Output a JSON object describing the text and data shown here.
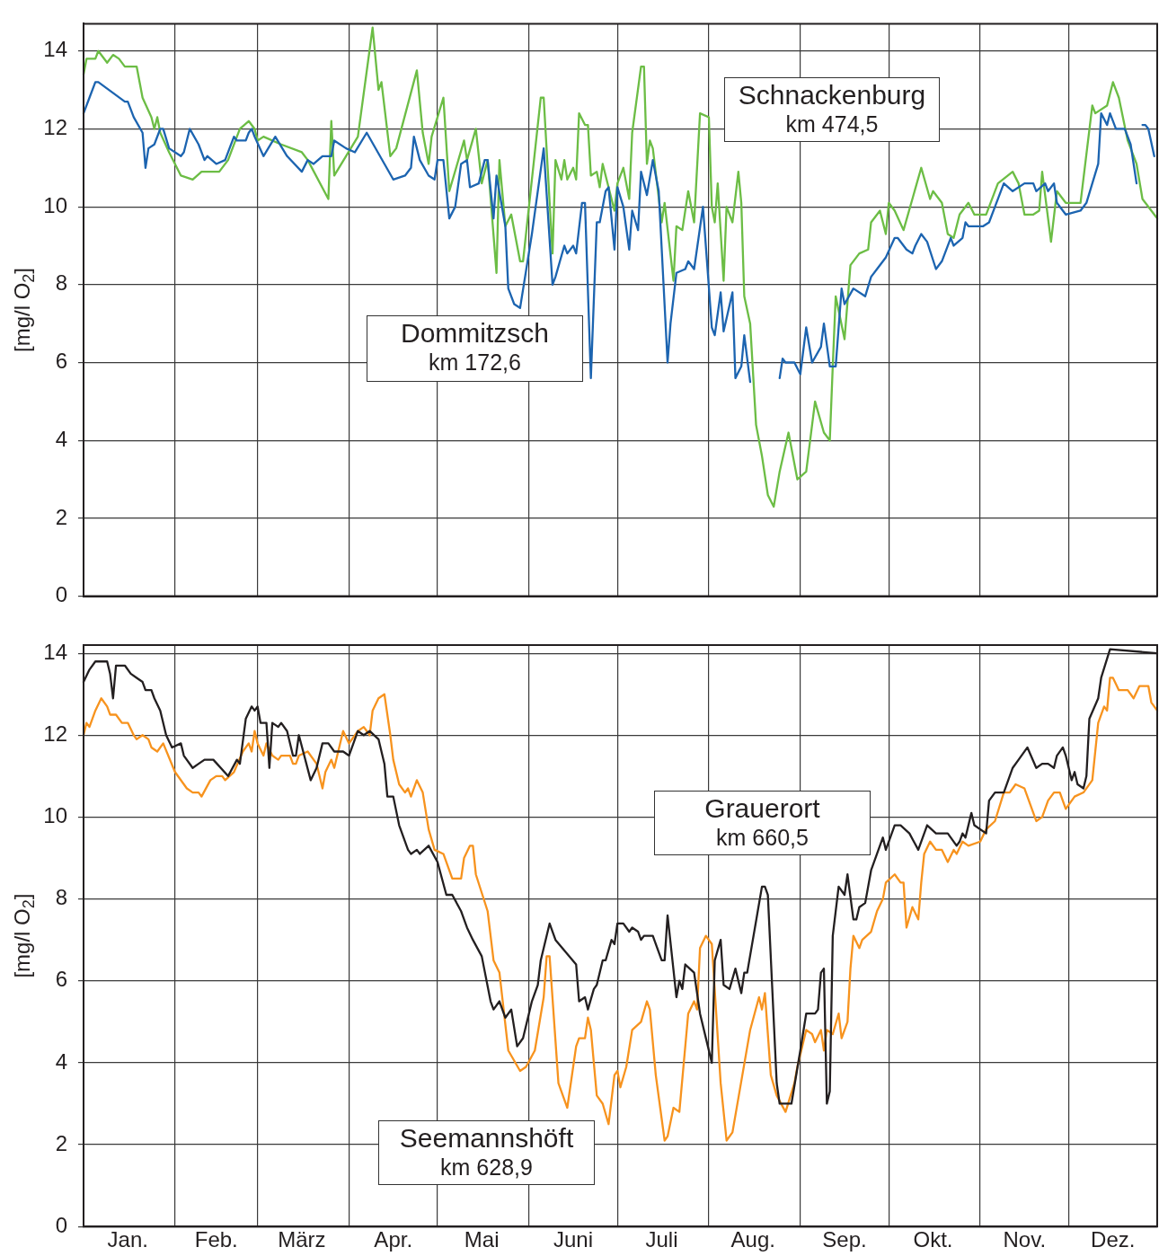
{
  "chart_data": [
    {
      "type": "line",
      "ylabel": "[mg/l O$_{2}$]",
      "xlim": [
        "--01-01",
        "--12-31"
      ],
      "ylim": [
        0,
        14.7
      ],
      "yticks": [
        0,
        2,
        4,
        6,
        8,
        10,
        12,
        14
      ],
      "xticks": [
        {
          "value": "--01-01",
          "label": null
        },
        {
          "value": "--02-01",
          "label": null
        },
        {
          "value": "--03-01",
          "label": null
        },
        {
          "value": "--04-01",
          "label": null
        },
        {
          "value": "--05-01",
          "label": null
        },
        {
          "value": "--06-01",
          "label": null
        },
        {
          "value": "--07-01",
          "label": null
        },
        {
          "value": "--08-01",
          "label": null
        },
        {
          "value": "--09-01",
          "label": null
        },
        {
          "value": "--10-01",
          "label": null
        },
        {
          "value": "--11-01",
          "label": null
        },
        {
          "value": "--12-01",
          "label": null
        },
        {
          "value": "--12-31",
          "label": null
        }
      ],
      "tick_labels": "y",
      "grid": true,
      "legend": false,
      "annotations": [
        "km 172,6",
        "km 474,5"
      ],
      "series": [
        {
          "name": "Dommitzsch",
          "color": "#1c64b0",
          "x": [
            "--01-01",
            "--01-03",
            "--01-05",
            "--01-06",
            "--01-15",
            "--01-16",
            "--01-18",
            "--01-21",
            "--01-22",
            "--01-23",
            "--01-25",
            "--01-27",
            "--01-28",
            "--01-30",
            "--02-03",
            "--02-04",
            "--02-06",
            "--02-09",
            "--02-11",
            "--02-12",
            "--02-15",
            "--02-18",
            "--02-21",
            "--02-22",
            "--02-25",
            "--02-26",
            "--02-27",
            "--02-28",
            "--03-03",
            "--03-07",
            "--03-11",
            "--03-16",
            "--03-18",
            "--03-20",
            "--03-23",
            "--03-26",
            "--03-27",
            "--03-31",
            "--04-03",
            "--04-07",
            "--04-16",
            "--04-20",
            "--04-22",
            "--04-23",
            "--04-25",
            "--04-28",
            "--04-30",
            "--05-01",
            "--05-03",
            "--05-05",
            "--05-07",
            "--05-09",
            "--05-11",
            "--05-12",
            "--05-15",
            "--05-17",
            "--05-18",
            "--05-20",
            "--05-21",
            "--05-24",
            "--05-25",
            "--05-27",
            "--05-29",
            "--06-02",
            "--06-06",
            "--06-09",
            "--06-10",
            "--06-13",
            "--06-14",
            "--06-16",
            "--06-17",
            "--06-19",
            "--06-20",
            "--06-22",
            "--06-24",
            "--06-25",
            "--06-27",
            "--06-28",
            "--06-30",
            "--07-01",
            "--07-03",
            "--07-05",
            "--07-06",
            "--07-08",
            "--07-09",
            "--07-11",
            "--07-13",
            "--07-15",
            "--07-18",
            "--07-19",
            "--07-21",
            "--07-24",
            "--07-25",
            "--07-27",
            "--07-30",
            "--08-02",
            "--08-03",
            "--08-05",
            "--08-06",
            "--08-09",
            "--08-10",
            "--08-12",
            "--08-13",
            "--08-15",
            "--08-20",
            "--08-25",
            "--08-26",
            "--08-27",
            "--08-30",
            "--09-01",
            "--09-03",
            "--09-05",
            "--09-08",
            "--09-09",
            "--09-11",
            "--09-13",
            "--09-15",
            "--09-16",
            "--09-19",
            "--09-23",
            "--09-25",
            "--09-27",
            "--09-30",
            "--10-03",
            "--10-04",
            "--10-07",
            "--10-09",
            "--10-10",
            "--10-12",
            "--10-14",
            "--10-17",
            "--10-19",
            "--10-22",
            "--10-23",
            "--10-26",
            "--10-27",
            "--10-28",
            "--11-02",
            "--11-04",
            "--11-06",
            "--11-09",
            "--11-12",
            "--11-16",
            "--11-19",
            "--11-20",
            "--11-23",
            "--11-24",
            "--11-26",
            "--11-27",
            "--11-30",
            "--12-05",
            "--12-07",
            "--12-11",
            "--12-12",
            "--12-14",
            "--12-15",
            "--12-17",
            "--12-20",
            "--12-22",
            "--12-24",
            "--12-25",
            "--12-26",
            "--12-27",
            "--12-28",
            "--12-30"
          ],
          "values": [
            12.4,
            12.8,
            13.2,
            13.2,
            12.7,
            12.7,
            12.3,
            11.9,
            11.0,
            11.5,
            11.6,
            12.0,
            12.0,
            11.5,
            11.3,
            11.4,
            12.0,
            11.6,
            11.2,
            11.3,
            11.1,
            11.2,
            11.8,
            11.7,
            11.7,
            11.9,
            12.0,
            11.8,
            11.3,
            11.8,
            11.3,
            10.9,
            11.2,
            11.1,
            11.3,
            11.3,
            11.7,
            11.5,
            11.4,
            11.9,
            10.7,
            10.8,
            11.0,
            11.8,
            11.2,
            10.8,
            10.7,
            11.2,
            11.2,
            9.7,
            10.0,
            11.1,
            11.2,
            10.5,
            10.6,
            11.2,
            11.2,
            9.7,
            10.8,
            9.5,
            7.9,
            7.5,
            7.4,
            9.3,
            11.5,
            8.0,
            8.2,
            9.0,
            8.8,
            9.0,
            8.8,
            10.1,
            10.1,
            5.6,
            9.6,
            9.6,
            10.4,
            10.5,
            8.9,
            10.5,
            10.0,
            8.9,
            9.9,
            9.4,
            10.9,
            10.3,
            11.2,
            10.4,
            6.0,
            7.0,
            8.3,
            8.4,
            8.6,
            8.4,
            10.0,
            6.9,
            6.7,
            7.8,
            6.8,
            7.8,
            5.6,
            5.9,
            6.7,
            5.5,
            null,
            5.6,
            6.1,
            6.0,
            6.0,
            5.7,
            6.9,
            6.0,
            6.4,
            7.0,
            5.9,
            5.9,
            7.9,
            7.5,
            7.9,
            7.7,
            8.2,
            8.4,
            8.7,
            9.2,
            9.2,
            8.9,
            8.8,
            9.0,
            9.3,
            9.1,
            8.4,
            8.6,
            9.2,
            9.0,
            9.2,
            9.6,
            9.5,
            9.5,
            9.6,
            10.0,
            10.6,
            10.4,
            10.6,
            10.6,
            10.4,
            10.6,
            10.4,
            10.6,
            10.1,
            9.8,
            9.9,
            10.1,
            11.1,
            12.4,
            12.1,
            12.4,
            12.0,
            12.0,
            11.6,
            10.6,
            null,
            12.1,
            12.1,
            12.0,
            11.3
          ]
        },
        {
          "name": "Schnackenburg",
          "color": "#6cbd45",
          "x": [
            "--01-01",
            "--01-02",
            "--01-05",
            "--01-06",
            "--01-09",
            "--01-11",
            "--01-13",
            "--01-15",
            "--01-19",
            "--01-21",
            "--01-24",
            "--01-25",
            "--01-26",
            "--01-27",
            "--01-30",
            "--02-03",
            "--02-07",
            "--02-10",
            "--02-16",
            "--02-19",
            "--02-23",
            "--02-26",
            "--02-28",
            "--03-01",
            "--03-03",
            "--03-09",
            "--03-16",
            "--03-18",
            "--03-25",
            "--03-26",
            "--03-27",
            "--04-04",
            "--04-09",
            "--04-11",
            "--04-12",
            "--04-15",
            "--04-17",
            "--04-24",
            "--04-26",
            "--04-28",
            "--04-29",
            "--05-03",
            "--05-05",
            "--05-10",
            "--05-11",
            "--05-14",
            "--05-16",
            "--05-18",
            "--05-21",
            "--05-22",
            "--05-24",
            "--05-26",
            "--05-29",
            "--05-30",
            "--06-05",
            "--06-06",
            "--06-09",
            "--06-10",
            "--06-12",
            "--06-13",
            "--06-14",
            "--06-16",
            "--06-17",
            "--06-18",
            "--06-20",
            "--06-21",
            "--06-22",
            "--06-24",
            "--06-25",
            "--06-26",
            "--06-30",
            "--07-01",
            "--07-03",
            "--07-05",
            "--07-06",
            "--07-09",
            "--07-10",
            "--07-11",
            "--07-12",
            "--07-13",
            "--07-16",
            "--07-17",
            "--07-20",
            "--07-21",
            "--07-23",
            "--07-25",
            "--07-27",
            "--07-29",
            "--08-01",
            "--08-02",
            "--08-03",
            "--08-04",
            "--08-06",
            "--08-07",
            "--08-09",
            "--08-11",
            "--08-12",
            "--08-13",
            "--08-15",
            "--08-17",
            "--08-19",
            "--08-21",
            "--08-23",
            "--08-25",
            "--08-28",
            "--08-31",
            "--09-03",
            "--09-06",
            "--09-09",
            "--09-11",
            "--09-12",
            "--09-13",
            "--09-16",
            "--09-18",
            "--09-21",
            "--09-24",
            "--09-25",
            "--09-28",
            "--09-30",
            "--10-01",
            "--10-03",
            "--10-06",
            "--10-09",
            "--10-12",
            "--10-15",
            "--10-16",
            "--10-19",
            "--10-21",
            "--10-23",
            "--10-25",
            "--10-28",
            "--10-30",
            "--11-03",
            "--11-07",
            "--11-12",
            "--11-14",
            "--11-16",
            "--11-19",
            "--11-21",
            "--11-22",
            "--11-25",
            "--11-27",
            "--11-30",
            "--12-03",
            "--12-05",
            "--12-09",
            "--12-10",
            "--12-14",
            "--12-16",
            "--12-18",
            "--12-21",
            "--12-24",
            "--12-26",
            "--12-30",
            "--12-31"
          ],
          "values": [
            13.4,
            13.8,
            13.8,
            14.0,
            13.7,
            13.9,
            13.8,
            13.6,
            13.6,
            12.8,
            12.3,
            12.0,
            12.3,
            11.9,
            11.4,
            10.8,
            10.7,
            10.9,
            10.9,
            11.2,
            12.0,
            12.2,
            12.0,
            11.7,
            11.8,
            11.6,
            11.4,
            11.2,
            10.2,
            12.2,
            10.8,
            11.8,
            14.6,
            13.0,
            13.2,
            11.3,
            11.5,
            13.5,
            11.9,
            11.1,
            11.8,
            12.8,
            10.4,
            11.7,
            11.2,
            12.0,
            10.6,
            11.2,
            8.3,
            11.2,
            9.5,
            9.8,
            8.6,
            8.6,
            12.8,
            12.8,
            8.8,
            11.2,
            10.7,
            11.2,
            10.7,
            11.0,
            10.7,
            12.4,
            12.1,
            12.1,
            10.8,
            10.9,
            10.5,
            11.1,
            9.9,
            10.6,
            11.0,
            10.2,
            11.9,
            13.6,
            13.6,
            11.1,
            11.7,
            11.5,
            9.6,
            10.1,
            8.1,
            9.5,
            9.4,
            10.4,
            9.6,
            12.4,
            12.3,
            10.0,
            9.6,
            10.6,
            8.1,
            10.0,
            9.6,
            10.9,
            10.1,
            7.7,
            7.0,
            4.4,
            3.6,
            2.6,
            2.3,
            3.2,
            4.2,
            3.0,
            3.2,
            5.0,
            4.2,
            4.0,
            5.9,
            7.7,
            6.6,
            8.5,
            8.8,
            8.9,
            9.6,
            9.9,
            9.3,
            10.1,
            9.9,
            9.4,
            10.2,
            11.0,
            10.2,
            10.4,
            10.1,
            9.3,
            9.2,
            9.8,
            10.1,
            9.8,
            9.8,
            10.6,
            10.9,
            10.6,
            9.8,
            9.8,
            9.9,
            10.9,
            9.1,
            10.4,
            10.1,
            10.1,
            10.1,
            12.6,
            12.4,
            12.6,
            13.2,
            12.8,
            11.7,
            11.1,
            10.2,
            9.8,
            9.7
          ]
        }
      ]
    },
    {
      "type": "line",
      "ylabel": "[mg/l O$_{2}$]",
      "xlim": [
        "--01-01",
        "--12-31"
      ],
      "ylim": [
        0,
        14.2
      ],
      "yticks": [
        0,
        2,
        4,
        6,
        8,
        10,
        12,
        14
      ],
      "xticks": [
        {
          "value": "--01-01",
          "label": null
        },
        {
          "value": "--02-01",
          "label": null
        },
        {
          "value": "--03-01",
          "label": null
        },
        {
          "value": "--04-01",
          "label": null
        },
        {
          "value": "--05-01",
          "label": null
        },
        {
          "value": "--06-01",
          "label": null
        },
        {
          "value": "--07-01",
          "label": null
        },
        {
          "value": "--08-01",
          "label": null
        },
        {
          "value": "--09-01",
          "label": null
        },
        {
          "value": "--10-01",
          "label": null
        },
        {
          "value": "--11-01",
          "label": null
        },
        {
          "value": "--12-01",
          "label": null
        },
        {
          "value": "--12-31",
          "label": null
        },
        {
          "value": "--01-16",
          "label": "Jan."
        },
        {
          "value": "--02-15",
          "label": "Feb."
        },
        {
          "value": "--03-16",
          "label": "März"
        },
        {
          "value": "--04-16",
          "label": "Apr."
        },
        {
          "value": "--05-16",
          "label": "Mai"
        },
        {
          "value": "--06-16",
          "label": "Juni"
        },
        {
          "value": "--07-16",
          "label": "Juli"
        },
        {
          "value": "--08-16",
          "label": "Aug."
        },
        {
          "value": "--09-16",
          "label": "Sep."
        },
        {
          "value": "--10-16",
          "label": "Okt."
        },
        {
          "value": "--11-16",
          "label": "Nov."
        },
        {
          "value": "--12-16",
          "label": "Dez."
        }
      ],
      "grid": true,
      "legend": false,
      "annotations": [
        "km 660,5",
        "km 628,9"
      ],
      "series": [
        {
          "name": "Grauerort",
          "color": "#231f20",
          "x": [
            "--01-01",
            "--01-03",
            "--01-05",
            "--01-09",
            "--01-10",
            "--01-11",
            "--01-12",
            "--01-15",
            "--01-17",
            "--01-19",
            "--01-21",
            "--01-22",
            "--01-24",
            "--01-25",
            "--01-27",
            "--01-29",
            "--01-31",
            "--02-03",
            "--02-04",
            "--02-07",
            "--02-09",
            "--02-11",
            "--02-14",
            "--02-19",
            "--02-22",
            "--02-23",
            "--02-25",
            "--02-27",
            "--02-28",
            "--03-01",
            "--03-02",
            "--03-04",
            "--03-05",
            "--03-06",
            "--03-08",
            "--03-09",
            "--03-11",
            "--03-13",
            "--03-14",
            "--03-15",
            "--03-19",
            "--03-21",
            "--03-23",
            "--03-25",
            "--03-27",
            "--03-30",
            "--04-01",
            "--04-04",
            "--04-06",
            "--04-08",
            "--04-11",
            "--04-13",
            "--04-14",
            "--04-16",
            "--04-18",
            "--04-21",
            "--04-22",
            "--04-24",
            "--04-25",
            "--04-28",
            "--05-01",
            "--05-04",
            "--05-06",
            "--05-09",
            "--05-11",
            "--05-13",
            "--05-16",
            "--05-19",
            "--05-20",
            "--05-22",
            "--05-24",
            "--05-26",
            "--05-28",
            "--05-30",
            "--06-02",
            "--06-04",
            "--06-05",
            "--06-08",
            "--06-10",
            "--06-17",
            "--06-18",
            "--06-20",
            "--06-21",
            "--06-23",
            "--06-24",
            "--06-26",
            "--06-27",
            "--06-29",
            "--06-30",
            "--07-01",
            "--07-03",
            "--07-05",
            "--07-06",
            "--07-08",
            "--07-09",
            "--07-10",
            "--07-12",
            "--07-13",
            "--07-16",
            "--07-17",
            "--07-18",
            "--07-21",
            "--07-22",
            "--07-23",
            "--07-24",
            "--07-27",
            "--07-29",
            "--08-02",
            "--08-03",
            "--08-05",
            "--08-06",
            "--08-08",
            "--08-10",
            "--08-12",
            "--08-13",
            "--08-14",
            "--08-19",
            "--08-20",
            "--08-21",
            "--08-24",
            "--08-25",
            "--08-29",
            "--09-01",
            "--09-03",
            "--09-06",
            "--09-07",
            "--09-08",
            "--09-09",
            "--09-10",
            "--09-11",
            "--09-12",
            "--09-14",
            "--09-16",
            "--09-17",
            "--09-19",
            "--09-20",
            "--09-21",
            "--09-23",
            "--09-25",
            "--09-27",
            "--09-29",
            "--09-30",
            "--10-03",
            "--10-05",
            "--10-08",
            "--10-11",
            "--10-14",
            "--10-17",
            "--10-19",
            "--10-21",
            "--10-24",
            "--10-25",
            "--10-26",
            "--10-27",
            "--10-29",
            "--10-30",
            "--11-03",
            "--11-04",
            "--11-06",
            "--11-09",
            "--11-12",
            "--11-14",
            "--11-17",
            "--11-20",
            "--11-22",
            "--11-24",
            "--11-26",
            "--11-27",
            "--11-29",
            "--11-30",
            "--12-02",
            "--12-03",
            "--12-04",
            "--12-06",
            "--12-07",
            "--12-08",
            "--12-11",
            "--12-12",
            "--12-15",
            "--12-31"
          ],
          "values": [
            13.3,
            13.6,
            13.8,
            13.8,
            13.5,
            12.9,
            13.7,
            13.7,
            13.5,
            13.4,
            13.3,
            13.1,
            13.1,
            12.9,
            12.6,
            12.0,
            11.7,
            11.8,
            11.5,
            11.2,
            11.3,
            11.4,
            11.4,
            11.0,
            11.4,
            11.3,
            12.4,
            12.7,
            12.6,
            12.7,
            12.3,
            12.3,
            11.2,
            12.3,
            12.2,
            12.3,
            12.1,
            11.5,
            11.5,
            12.0,
            10.9,
            11.2,
            11.8,
            11.8,
            11.6,
            11.6,
            11.5,
            12.1,
            12.0,
            12.1,
            11.9,
            11.3,
            10.5,
            10.5,
            9.8,
            9.2,
            9.1,
            9.2,
            9.1,
            9.3,
            8.9,
            8.1,
            8.1,
            7.7,
            7.3,
            7.0,
            6.6,
            5.5,
            5.3,
            5.5,
            5.1,
            5.3,
            4.4,
            4.6,
            5.5,
            5.9,
            6.5,
            7.4,
            7.0,
            6.4,
            5.5,
            5.6,
            5.3,
            5.8,
            5.9,
            6.5,
            6.5,
            7.0,
            6.9,
            7.4,
            7.4,
            7.2,
            7.3,
            7.2,
            7.0,
            7.1,
            7.1,
            7.1,
            6.5,
            6.5,
            7.6,
            5.6,
            6.0,
            5.8,
            6.4,
            6.2,
            5.2,
            4.0,
            6.5,
            7.0,
            5.9,
            5.8,
            6.3,
            5.7,
            6.2,
            6.2,
            8.3,
            8.3,
            8.1,
            3.5,
            3.0,
            3.0,
            4.3,
            5.2,
            5.2,
            5.3,
            6.2,
            6.3,
            3.0,
            3.3,
            7.1,
            8.3,
            8.1,
            8.6,
            7.5,
            7.5,
            7.8,
            7.9,
            8.7,
            9.1,
            9.5,
            9.2,
            9.8,
            9.8,
            9.6,
            9.2,
            9.8,
            9.6,
            9.6,
            9.6,
            9.3,
            9.4,
            9.6,
            9.5,
            10.1,
            9.8,
            9.6,
            10.4,
            10.6,
            10.6,
            11.2,
            11.4,
            11.7,
            11.2,
            11.3,
            11.3,
            11.2,
            11.5,
            11.7,
            11.5,
            10.9,
            11.1,
            10.8,
            10.7,
            11.0,
            12.4,
            12.9,
            13.4,
            14.1,
            14.0
          ]
        },
        {
          "name": "Seemannshöft",
          "color": "#f7931e",
          "x": [
            "--01-01",
            "--01-02",
            "--01-03",
            "--01-05",
            "--01-07",
            "--01-09",
            "--01-10",
            "--01-12",
            "--01-14",
            "--01-16",
            "--01-18",
            "--01-19",
            "--01-21",
            "--01-23",
            "--01-24",
            "--01-26",
            "--01-28",
            "--02-01",
            "--02-05",
            "--02-07",
            "--02-09",
            "--02-10",
            "--02-13",
            "--02-15",
            "--02-17",
            "--02-18",
            "--02-21",
            "--02-24",
            "--02-26",
            "--02-27",
            "--02-28",
            "--03-01",
            "--03-03",
            "--03-04",
            "--03-06",
            "--03-08",
            "--03-09",
            "--03-12",
            "--03-13",
            "--03-14",
            "--03-15",
            "--03-18",
            "--03-21",
            "--03-23",
            "--03-24",
            "--03-26",
            "--03-27",
            "--03-30",
            "--04-01",
            "--04-04",
            "--04-06",
            "--04-08",
            "--04-09",
            "--04-11",
            "--04-13",
            "--04-15",
            "--04-16",
            "--04-18",
            "--04-20",
            "--04-21",
            "--04-22",
            "--04-24",
            "--04-26",
            "--04-28",
            "--04-30",
            "--05-03",
            "--05-06",
            "--05-09",
            "--05-10",
            "--05-12",
            "--05-13",
            "--05-14",
            "--05-18",
            "--05-20",
            "--05-22",
            "--05-25",
            "--05-29",
            "--05-31",
            "--06-03",
            "--06-06",
            "--06-07",
            "--06-08",
            "--06-11",
            "--06-14",
            "--06-17",
            "--06-18",
            "--06-20",
            "--06-21",
            "--06-22",
            "--06-24",
            "--06-26",
            "--06-28",
            "--06-30",
            "--07-01",
            "--07-02",
            "--07-04",
            "--07-06",
            "--07-09",
            "--07-11",
            "--07-12",
            "--07-14",
            "--07-17",
            "--07-18",
            "--07-20",
            "--07-22",
            "--07-25",
            "--07-27",
            "--07-28",
            "--07-29",
            "--07-31",
            "--08-02",
            "--08-05",
            "--08-07",
            "--08-09",
            "--08-15",
            "--08-18",
            "--08-19",
            "--08-20",
            "--08-22",
            "--08-24",
            "--08-27",
            "--08-30",
            "--08-31",
            "--09-03",
            "--09-05",
            "--09-06",
            "--09-08",
            "--09-09",
            "--09-10",
            "--09-12",
            "--09-14",
            "--09-15",
            "--09-17",
            "--09-18",
            "--09-19",
            "--09-21",
            "--09-22",
            "--09-25",
            "--09-27",
            "--09-29",
            "--09-30",
            "--10-03",
            "--10-05",
            "--10-06",
            "--10-07",
            "--10-09",
            "--10-11",
            "--10-12",
            "--10-13",
            "--10-15",
            "--10-17",
            "--10-19",
            "--10-21",
            "--10-23",
            "--10-24",
            "--10-26",
            "--10-28",
            "--11-01",
            "--11-03",
            "--11-06",
            "--11-09",
            "--11-11",
            "--11-13",
            "--11-16",
            "--11-20",
            "--11-22",
            "--11-24",
            "--11-26",
            "--11-28",
            "--11-30",
            "--12-03",
            "--12-06",
            "--12-09",
            "--12-11",
            "--12-13",
            "--12-14",
            "--12-15",
            "--12-16",
            "--12-18",
            "--12-21",
            "--12-23",
            "--12-25",
            "--12-28",
            "--12-29",
            "--12-31"
          ],
          "values": [
            12.0,
            12.3,
            12.2,
            12.6,
            12.9,
            12.7,
            12.5,
            12.5,
            12.3,
            12.3,
            12.0,
            11.9,
            12.0,
            11.9,
            11.7,
            11.6,
            11.8,
            11.1,
            10.7,
            10.6,
            10.6,
            10.5,
            10.9,
            11.0,
            11.0,
            10.9,
            11.1,
            11.6,
            11.8,
            11.6,
            12.1,
            11.8,
            11.5,
            11.8,
            11.5,
            11.4,
            11.5,
            11.5,
            11.3,
            11.3,
            11.5,
            11.6,
            11.3,
            10.7,
            11.1,
            11.4,
            11.2,
            12.1,
            11.8,
            12.1,
            12.2,
            12.0,
            12.6,
            12.9,
            13.0,
            12.0,
            11.4,
            10.8,
            10.6,
            10.7,
            10.5,
            10.9,
            10.6,
            9.7,
            9.2,
            9.1,
            8.5,
            8.5,
            9.0,
            9.3,
            9.3,
            8.6,
            7.7,
            6.5,
            6.2,
            4.3,
            3.8,
            3.9,
            4.3,
            5.6,
            6.6,
            6.6,
            3.5,
            2.9,
            4.4,
            4.6,
            4.6,
            5.1,
            4.8,
            3.2,
            3.0,
            2.5,
            3.7,
            3.8,
            3.4,
            3.9,
            4.8,
            5.0,
            5.5,
            5.3,
            3.7,
            2.1,
            2.2,
            2.9,
            2.8,
            5.2,
            5.5,
            5.3,
            6.8,
            7.1,
            6.9,
            3.5,
            2.1,
            2.3,
            4.8,
            5.6,
            5.3,
            5.7,
            3.7,
            3.2,
            2.8,
            3.5,
            3.9,
            4.8,
            4.7,
            4.5,
            4.8,
            4.3,
            4.8,
            4.7,
            5.2,
            4.6,
            5.0,
            6.3,
            7.1,
            6.8,
            7.0,
            7.2,
            7.7,
            8.0,
            8.4,
            8.6,
            8.4,
            8.4,
            7.3,
            7.8,
            7.5,
            8.4,
            9.1,
            9.4,
            9.2,
            9.2,
            8.9,
            9.2,
            9.1,
            9.4,
            9.3,
            9.4,
            9.7,
            9.9,
            10.6,
            10.6,
            10.8,
            10.7,
            9.9,
            10.0,
            10.4,
            10.6,
            10.6,
            10.2,
            10.5,
            10.6,
            10.9,
            12.3,
            12.7,
            12.6,
            13.4,
            13.4,
            13.1,
            13.1,
            12.9,
            13.2,
            13.2,
            12.8,
            12.6
          ]
        }
      ]
    }
  ]
}
